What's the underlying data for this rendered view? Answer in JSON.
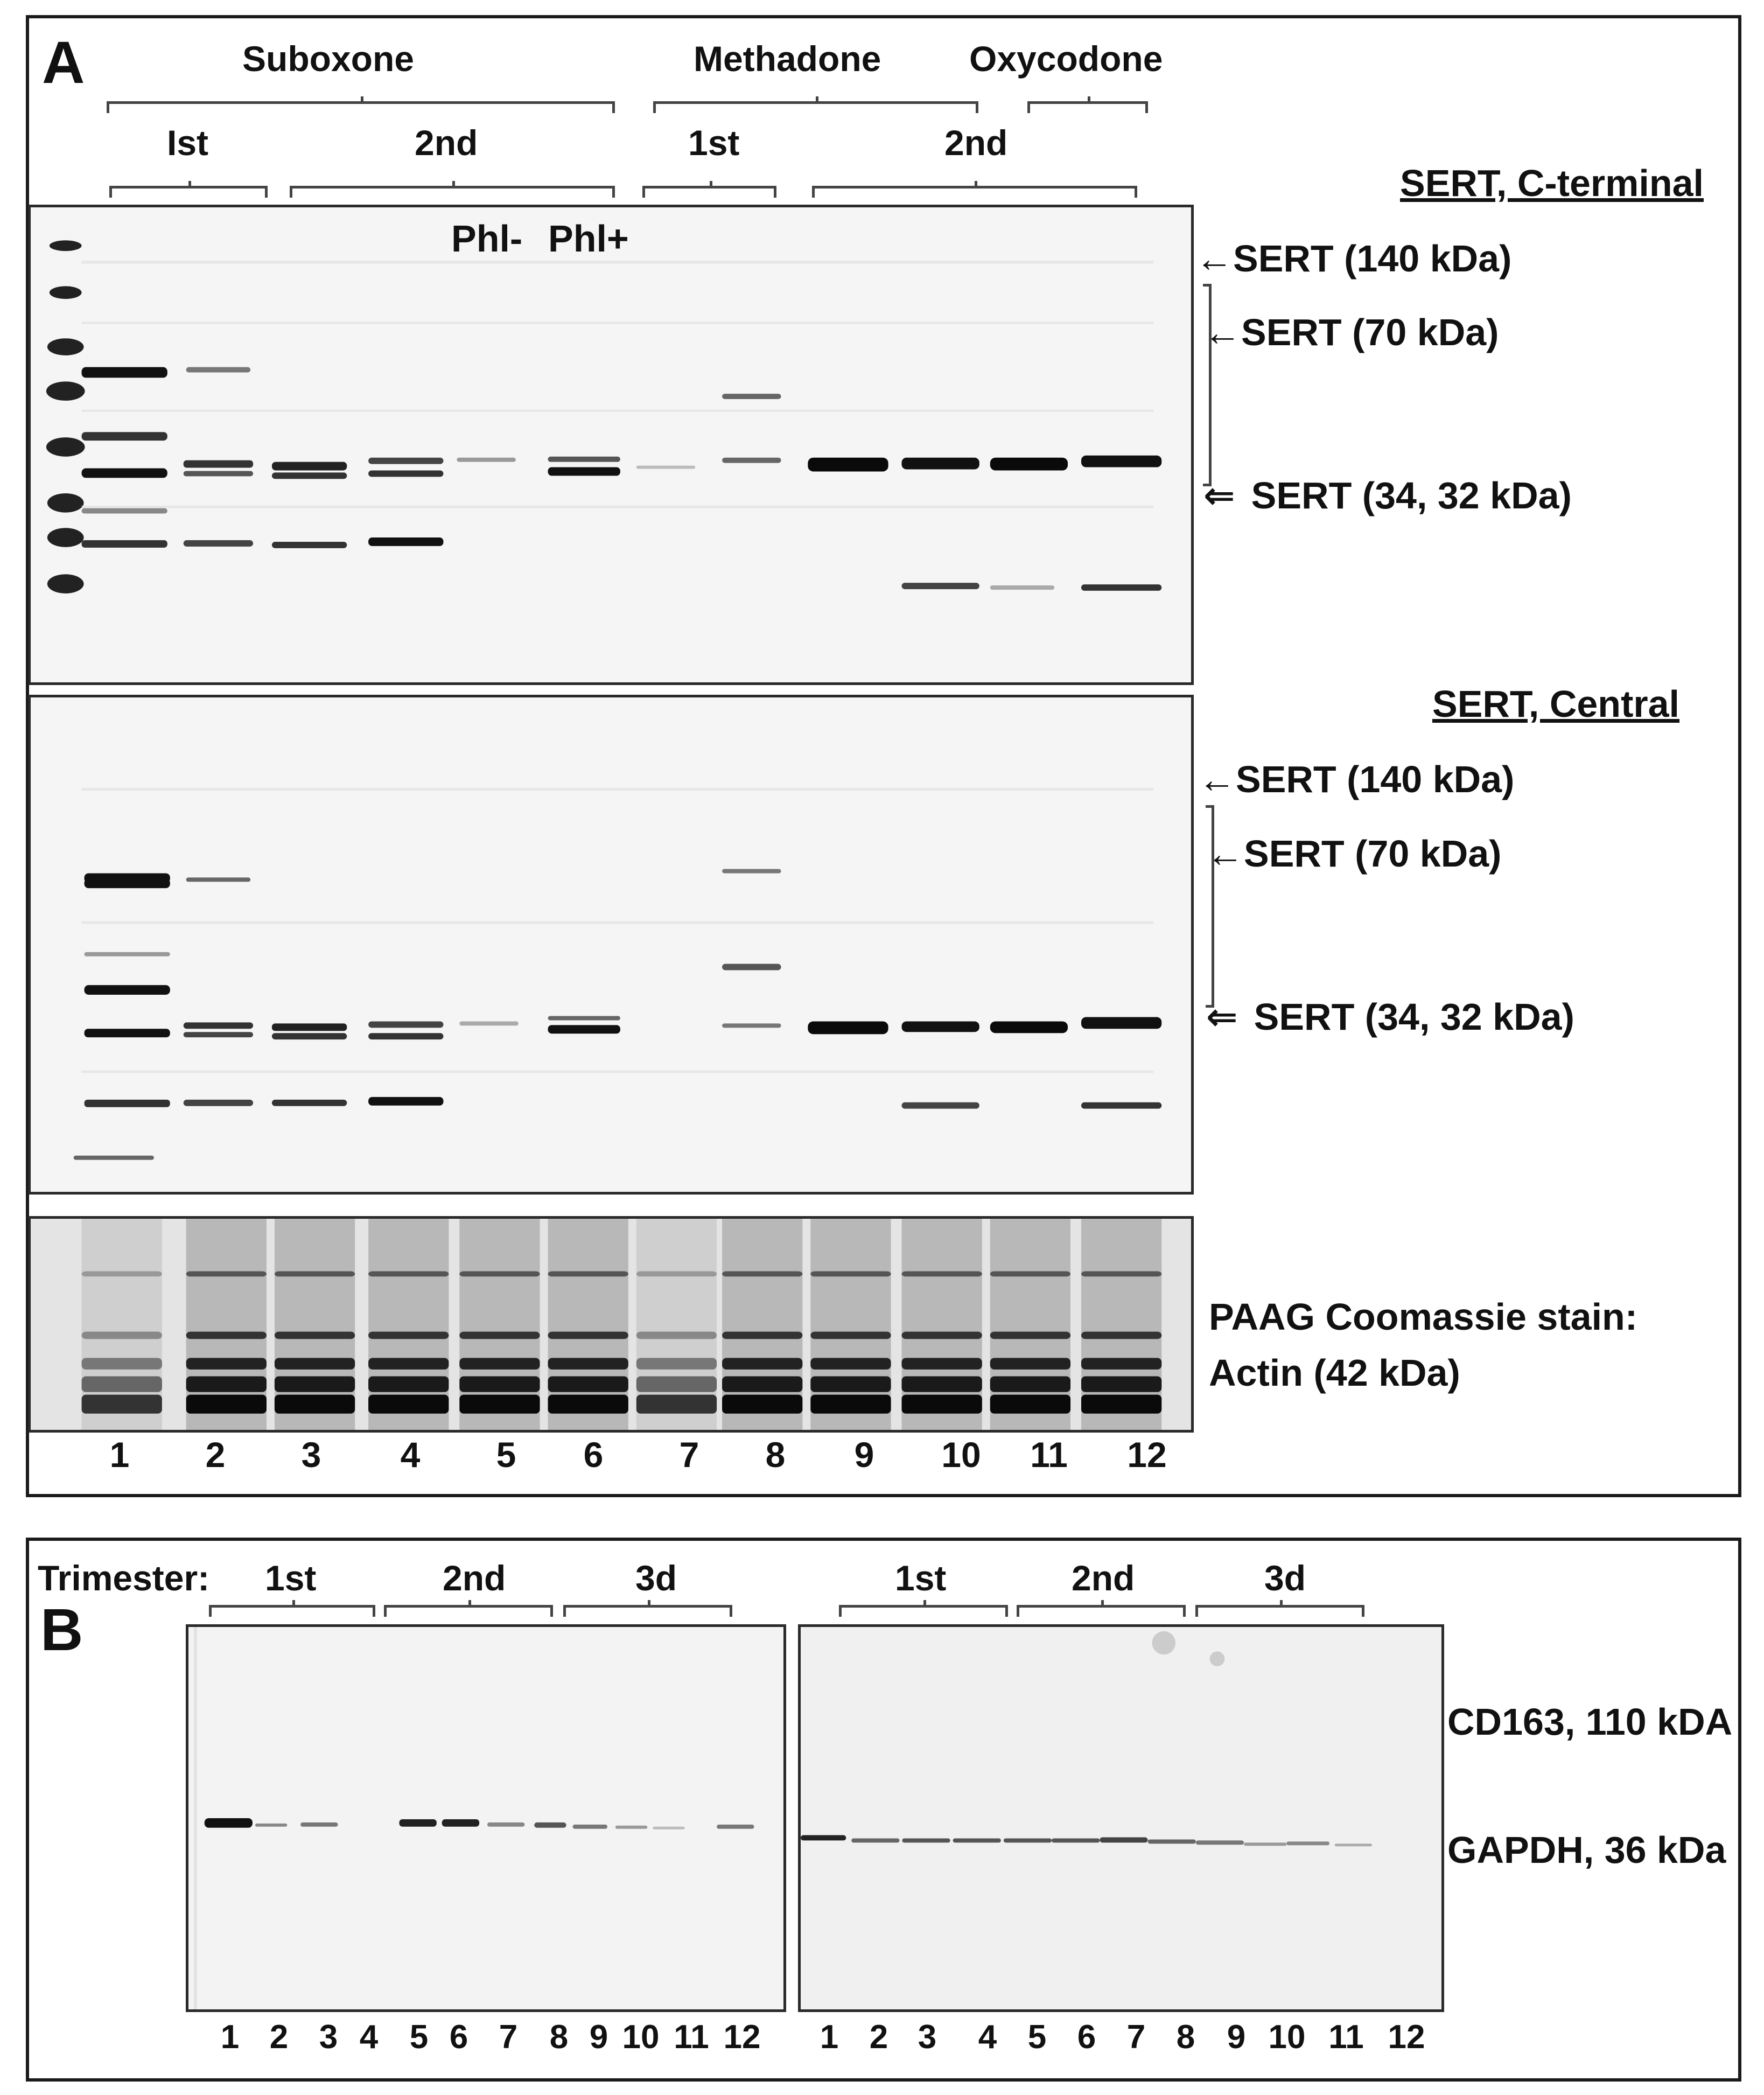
{
  "panelA": {
    "letter": "A",
    "groups": {
      "suboxone": "Suboxone",
      "methadone": "Methadone",
      "oxycodone": "Oxycodone"
    },
    "trimesters": {
      "sub_1st": "Ist",
      "sub_2nd": "2nd",
      "met_1st": "1st",
      "met_2nd": "2nd"
    },
    "phl": {
      "minus": "Phl-",
      "plus": "Phl+"
    },
    "blot1": {
      "title": "SERT, C-terminal",
      "markers": [
        "SERT (140 kDa)",
        "SERT (70 kDa)",
        "SERT (34, 32 kDa)"
      ]
    },
    "blot2": {
      "title": "SERT, Central",
      "markers": [
        "SERT (140 kDa)",
        "SERT (70 kDa)",
        "SERT (34, 32 kDa)"
      ]
    },
    "blot3": {
      "stain_line1": "PAAG Coomassie stain:",
      "stain_line2": "Actin (42 kDa)"
    },
    "lanes": [
      "1",
      "2",
      "3",
      "4",
      "5",
      "6",
      "7",
      "8",
      "9",
      "10",
      "11",
      "12"
    ]
  },
  "panelB": {
    "letter": "B",
    "trimester_label": "Trimester:",
    "left_trimesters": [
      "1st",
      "2nd",
      "3d"
    ],
    "right_trimesters": [
      "1st",
      "2nd",
      "3d"
    ],
    "markers": [
      "CD163, 110 kDA",
      "GAPDH, 36 kDa"
    ],
    "lanes_left": [
      "1",
      "2",
      "3",
      "4",
      "5",
      "6",
      "7",
      "8",
      "9",
      "10",
      "11",
      "12"
    ],
    "lanes_right": [
      "1",
      "2",
      "3",
      "4",
      "5",
      "6",
      "7",
      "8",
      "9",
      "10",
      "11",
      "12"
    ]
  }
}
